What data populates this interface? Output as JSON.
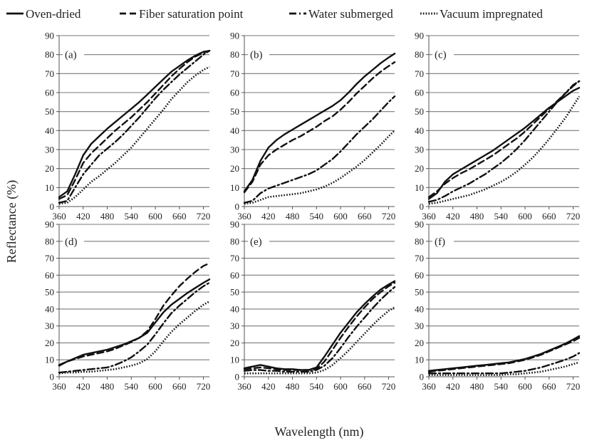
{
  "chart_data": {
    "type": "line",
    "xlabel": "Wavelength (nm)",
    "ylabel": "Reflectance (%)",
    "x_ticks": [
      360,
      420,
      480,
      540,
      600,
      660,
      720
    ],
    "y_ticks": [
      0,
      10,
      20,
      30,
      40,
      50,
      60,
      70,
      80,
      90
    ],
    "xlim": [
      360,
      735
    ],
    "ylim": [
      0,
      90
    ],
    "grid": "horizontal",
    "legend_position": "top",
    "legend": [
      {
        "name": "Oven-dried",
        "style": "solid"
      },
      {
        "name": "Fiber saturation point",
        "style": "dashed"
      },
      {
        "name": "Water submerged",
        "style": "dashdot"
      },
      {
        "name": "Vacuum impregnated",
        "style": "dotted"
      }
    ],
    "x": [
      360,
      380,
      400,
      420,
      440,
      460,
      480,
      500,
      520,
      540,
      560,
      580,
      600,
      620,
      640,
      660,
      680,
      700,
      720,
      735
    ],
    "panels": [
      {
        "label": "(a)",
        "series": [
          {
            "name": "Oven-dried",
            "values": [
              5,
              8,
              17,
              27,
              33,
              37,
              41,
              44.5,
              48,
              51.5,
              55,
              59,
              63,
              67,
              71,
              74,
              77,
              79.5,
              81.5,
              82
            ]
          },
          {
            "name": "Fiber saturation point",
            "values": [
              4,
              6,
              14,
              23,
              28,
              32,
              36,
              40,
              43.5,
              47,
              51,
              55,
              59.5,
              64,
              68.5,
              72.5,
              76,
              79,
              81,
              82
            ]
          },
          {
            "name": "Water submerged",
            "values": [
              2,
              3,
              10,
              17,
              22,
              27,
              30.5,
              34,
              38,
              42.5,
              47,
              52,
              57,
              61.5,
              65.5,
              69.5,
              73,
              76.5,
              80,
              82
            ]
          },
          {
            "name": "Vacuum impregnated",
            "values": [
              1.5,
              2,
              5,
              9,
              13,
              16,
              19.5,
              23,
              27,
              31,
              36,
              41,
              46,
              51,
              56.5,
              61,
              65.5,
              69,
              72,
              73.5
            ]
          }
        ]
      },
      {
        "label": "(b)",
        "series": [
          {
            "name": "Oven-dried",
            "values": [
              8,
              14,
              24,
              31,
              35,
              38,
              40.5,
              43,
              45.5,
              48,
              50.5,
              53,
              56,
              60,
              64.5,
              68.5,
              72,
              75.5,
              78.5,
              80.5
            ]
          },
          {
            "name": "Fiber saturation point",
            "values": [
              7.5,
              13,
              22,
              27,
              30,
              32.5,
              35,
              37,
              39.5,
              42,
              45,
              47.5,
              51,
              55,
              59.5,
              63.5,
              67.5,
              71,
              74,
              76
            ]
          },
          {
            "name": "Water submerged",
            "values": [
              2,
              3,
              7,
              9.5,
              11,
              12.5,
              14,
              15.5,
              17,
              19,
              22,
              25,
              29,
              33.5,
              38,
              42,
              46,
              50.5,
              55,
              58
            ]
          },
          {
            "name": "Vacuum impregnated",
            "values": [
              1.5,
              2,
              3.5,
              5,
              5.5,
              6,
              6.5,
              7,
              8,
              9,
              10.5,
              12.5,
              15,
              18,
              21,
              24.5,
              28.5,
              32.5,
              37,
              40
            ]
          }
        ]
      },
      {
        "label": "(c)",
        "series": [
          {
            "name": "Oven-dried",
            "values": [
              4,
              7,
              13,
              17,
              19.5,
              22,
              24.5,
              27,
              29.5,
              32.5,
              35.5,
              38.5,
              41.5,
              45,
              48.5,
              52,
              55,
              58,
              61,
              62.5
            ]
          },
          {
            "name": "Fiber saturation point",
            "values": [
              5,
              8,
              12,
              15,
              17.5,
              19.5,
              22,
              24.5,
              27,
              30,
              33,
              36,
              39.5,
              43.5,
              47.5,
              51.5,
              55.5,
              59.5,
              63.5,
              66
            ]
          },
          {
            "name": "Water submerged",
            "values": [
              2.5,
              3.5,
              5.5,
              8,
              10,
              12,
              14.5,
              17,
              20,
              23,
              26.5,
              30.5,
              35,
              40,
              45,
              50,
              55,
              59.5,
              64,
              66
            ]
          },
          {
            "name": "Vacuum impregnated",
            "values": [
              1.5,
              2,
              3,
              4,
              5,
              6,
              7.5,
              9,
              11,
              13,
              15.5,
              18.5,
              22,
              26,
              30.5,
              35.5,
              41,
              46.5,
              53,
              58
            ]
          }
        ]
      },
      {
        "label": "(d)",
        "series": [
          {
            "name": "Oven-dried",
            "values": [
              6.5,
              9,
              11,
              13,
              14,
              15,
              16,
              17.5,
              19,
              21,
              23,
              26,
              32,
              38,
              42.5,
              46,
              49.5,
              52.5,
              55.5,
              57.5
            ]
          },
          {
            "name": "Fiber saturation point",
            "values": [
              7,
              9,
              10.5,
              12,
              13,
              14,
              15,
              16.5,
              18.5,
              20.5,
              23,
              27,
              34,
              42,
              48,
              53.5,
              58,
              62,
              65.5,
              67
            ]
          },
          {
            "name": "Water submerged",
            "values": [
              2.5,
              3,
              3.5,
              4,
              4.5,
              5,
              5.5,
              7,
              9,
              11.5,
              15,
              19,
              25,
              31.5,
              37.5,
              42,
              46,
              50,
              53.5,
              55.5
            ]
          },
          {
            "name": "Vacuum impregnated",
            "values": [
              2,
              2.5,
              2.5,
              3,
              3,
              3.5,
              4,
              4.5,
              5.5,
              6.5,
              8,
              10.5,
              15,
              21,
              26.5,
              31,
              35,
              39,
              42.5,
              44.5
            ]
          }
        ]
      },
      {
        "label": "(e)",
        "series": [
          {
            "name": "Oven-dried",
            "values": [
              5,
              6,
              7,
              6,
              5,
              4.5,
              4.5,
              4,
              4,
              5.5,
              12,
              19,
              26,
              32,
              38,
              43,
              47.5,
              51.5,
              54.5,
              56.5
            ]
          },
          {
            "name": "Fiber saturation point",
            "values": [
              4.5,
              5,
              5.5,
              5,
              4.5,
              4,
              4,
              4,
              4,
              4.5,
              9,
              16,
              23,
              29.5,
              35.5,
              41,
              46,
              50,
              53.5,
              55.5
            ]
          },
          {
            "name": "Water submerged",
            "values": [
              3.5,
              4,
              4,
              3.5,
              3.5,
              3,
              3,
              3,
              3,
              4,
              6.5,
              11,
              17,
              23.5,
              29.5,
              35,
              40.5,
              45.5,
              50,
              53
            ]
          },
          {
            "name": "Vacuum impregnated",
            "values": [
              2,
              2,
              2,
              2,
              2,
              2,
              2,
              2,
              2,
              2.5,
              4,
              7,
              11,
              15.5,
              20.5,
              25.5,
              30.5,
              35,
              39,
              41
            ]
          }
        ]
      },
      {
        "label": "(f)",
        "series": [
          {
            "name": "Oven-dried",
            "values": [
              3.5,
              4,
              4.5,
              5,
              5.5,
              6,
              6.5,
              7,
              7.5,
              8,
              8.5,
              9.5,
              10.5,
              12,
              13.5,
              15.5,
              17.5,
              19.5,
              22,
              24
            ]
          },
          {
            "name": "Fiber saturation point",
            "values": [
              3,
              3.5,
              4,
              4.5,
              5,
              5.5,
              6,
              6.5,
              7,
              7.5,
              8,
              9,
              10,
              11.5,
              13,
              15,
              17,
              19,
              21,
              23
            ]
          },
          {
            "name": "Water submerged",
            "values": [
              2,
              2,
              2,
              2,
              2,
              2,
              2,
              2,
              2,
              2,
              2.5,
              3,
              3.5,
              4.5,
              5.5,
              7,
              8.5,
              10,
              12,
              14
            ]
          },
          {
            "name": "Vacuum impregnated",
            "values": [
              1,
              1,
              1,
              1,
              1,
              1,
              1,
              1,
              1,
              1,
              1.5,
              1.5,
              2,
              2.5,
              3,
              4,
              5,
              6,
              7.5,
              8.5
            ]
          }
        ]
      }
    ]
  }
}
